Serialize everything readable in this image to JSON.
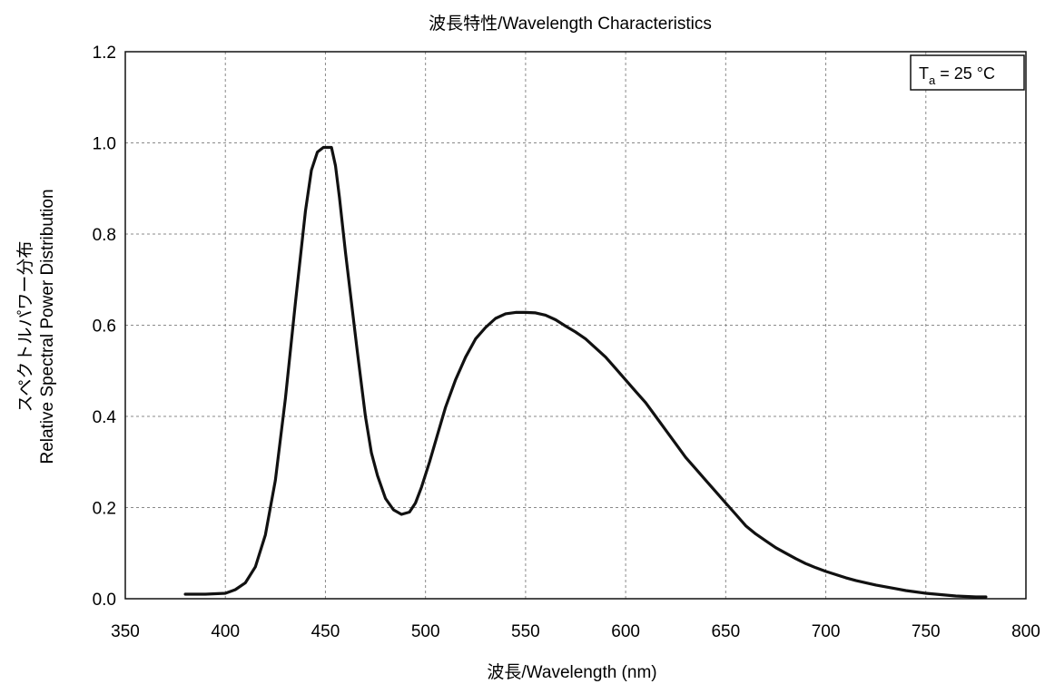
{
  "chart_data": {
    "type": "line",
    "title": "波長特性/Wavelength Characteristics",
    "xlabel": "波長/Wavelength (nm)",
    "ylabel_line1": "スペクトルパワー分布",
    "ylabel_line2": "Relative Spectral Power Distribution",
    "xlim": [
      350,
      800
    ],
    "ylim": [
      0,
      1.2
    ],
    "x_ticks": [
      350,
      400,
      450,
      500,
      550,
      600,
      650,
      700,
      750,
      800
    ],
    "x_tick_labels": [
      "350",
      "400",
      "450",
      "500",
      "550",
      "600",
      "650",
      "700",
      "750",
      "800"
    ],
    "y_ticks": [
      0,
      0.2,
      0.4,
      0.6,
      0.8,
      1.0,
      1.2
    ],
    "y_tick_labels": [
      "0.0",
      "0.2",
      "0.4",
      "0.6",
      "0.8",
      "1.0",
      "1.2"
    ],
    "grid": true,
    "legend_position": "top-right",
    "annotation": {
      "symbol": "T",
      "subscript": "a",
      "text": " = 25 °C"
    },
    "series": [
      {
        "color": "#111111",
        "x": [
          380,
          390,
          400,
          405,
          410,
          415,
          420,
          425,
          430,
          435,
          440,
          443,
          446,
          449,
          451,
          453,
          455,
          457,
          460,
          463,
          466,
          470,
          473,
          476,
          480,
          484,
          488,
          492,
          495,
          498,
          502,
          506,
          510,
          515,
          520,
          525,
          530,
          535,
          540,
          545,
          550,
          555,
          560,
          565,
          570,
          575,
          580,
          585,
          590,
          595,
          600,
          605,
          610,
          615,
          620,
          625,
          630,
          635,
          640,
          645,
          650,
          655,
          660,
          665,
          670,
          675,
          680,
          685,
          690,
          695,
          700,
          705,
          710,
          715,
          720,
          725,
          730,
          735,
          740,
          745,
          750,
          755,
          760,
          765,
          770,
          775,
          780
        ],
        "y": [
          0.01,
          0.01,
          0.012,
          0.02,
          0.035,
          0.07,
          0.14,
          0.26,
          0.44,
          0.65,
          0.85,
          0.94,
          0.98,
          0.99,
          0.99,
          0.99,
          0.95,
          0.88,
          0.76,
          0.65,
          0.54,
          0.4,
          0.32,
          0.27,
          0.22,
          0.195,
          0.185,
          0.19,
          0.21,
          0.245,
          0.3,
          0.36,
          0.42,
          0.48,
          0.53,
          0.57,
          0.595,
          0.615,
          0.625,
          0.628,
          0.628,
          0.627,
          0.622,
          0.612,
          0.598,
          0.585,
          0.57,
          0.55,
          0.53,
          0.505,
          0.48,
          0.455,
          0.43,
          0.4,
          0.37,
          0.34,
          0.31,
          0.285,
          0.26,
          0.235,
          0.21,
          0.185,
          0.16,
          0.142,
          0.127,
          0.112,
          0.1,
          0.088,
          0.077,
          0.068,
          0.06,
          0.053,
          0.046,
          0.04,
          0.035,
          0.03,
          0.026,
          0.022,
          0.018,
          0.015,
          0.012,
          0.01,
          0.008,
          0.006,
          0.005,
          0.004,
          0.004
        ]
      }
    ]
  }
}
